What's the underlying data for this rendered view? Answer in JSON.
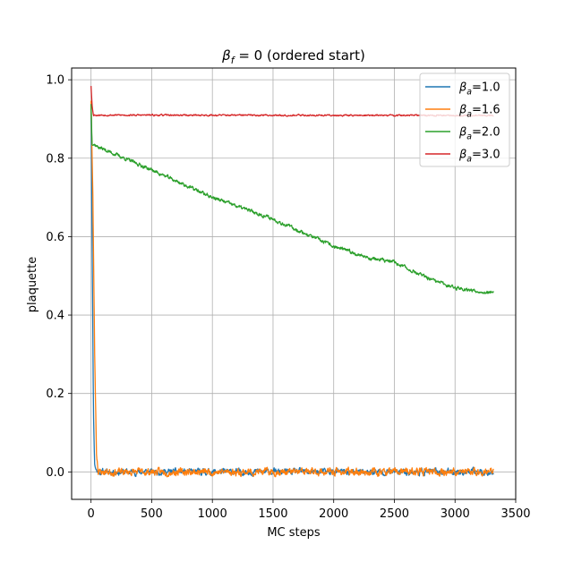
{
  "chart_data": {
    "type": "line",
    "title": "β_f = 0 (ordered start)",
    "title_parts": {
      "beta": "β",
      "sub": "f",
      "rest": " = 0 (ordered start)"
    },
    "xlabel": "MC steps",
    "ylabel": "plaquette",
    "xlim": [
      -160,
      3500
    ],
    "ylim": [
      -0.07,
      1.03
    ],
    "xticks": [
      0,
      500,
      1000,
      1500,
      2000,
      2500,
      3000,
      3500
    ],
    "xtick_labels": [
      "0",
      "500",
      "1000",
      "1500",
      "2000",
      "2500",
      "3000",
      "3500"
    ],
    "yticks": [
      0.0,
      0.2,
      0.4,
      0.6,
      0.8,
      1.0
    ],
    "ytick_labels": [
      "0.0",
      "0.2",
      "0.4",
      "0.6",
      "0.8",
      "1.0"
    ],
    "grid": true,
    "legend_position": "top-right",
    "n_steps": 3320,
    "series": [
      {
        "name": "βa=1.0",
        "label": {
          "beta": "β",
          "sub": "a",
          "rest": "=1.0"
        },
        "color": "#1f77b4",
        "points": [
          [
            0,
            0.93
          ],
          [
            10,
            0.55
          ],
          [
            20,
            0.15
          ],
          [
            30,
            0.02
          ],
          [
            50,
            0.0
          ],
          [
            3320,
            0.0
          ]
        ],
        "noise": 0.006,
        "seed": 11
      },
      {
        "name": "βa=1.6",
        "label": {
          "beta": "β",
          "sub": "a",
          "rest": "=1.6"
        },
        "color": "#ff7f0e",
        "points": [
          [
            0,
            0.95
          ],
          [
            15,
            0.7
          ],
          [
            30,
            0.3
          ],
          [
            45,
            0.05
          ],
          [
            60,
            0.0
          ],
          [
            3320,
            0.0
          ]
        ],
        "noise": 0.007,
        "seed": 23
      },
      {
        "name": "βa=2.0",
        "label": {
          "beta": "β",
          "sub": "a",
          "rest": "=2.0"
        },
        "color": "#2ca02c",
        "points": [
          [
            0,
            0.94
          ],
          [
            8,
            0.84
          ],
          [
            50,
            0.83
          ],
          [
            500,
            0.77
          ],
          [
            1000,
            0.7
          ],
          [
            1500,
            0.645
          ],
          [
            2000,
            0.575
          ],
          [
            2300,
            0.545
          ],
          [
            2500,
            0.535
          ],
          [
            2800,
            0.49
          ],
          [
            3000,
            0.47
          ],
          [
            3320,
            0.455
          ]
        ],
        "noise": 0.0035,
        "seed": 37
      },
      {
        "name": "βa=3.0",
        "label": {
          "beta": "β",
          "sub": "a",
          "rest": "=3.0"
        },
        "color": "#d62728",
        "points": [
          [
            0,
            0.985
          ],
          [
            10,
            0.93
          ],
          [
            20,
            0.91
          ],
          [
            3320,
            0.909
          ]
        ],
        "noise": 0.0015,
        "seed": 53
      }
    ]
  }
}
